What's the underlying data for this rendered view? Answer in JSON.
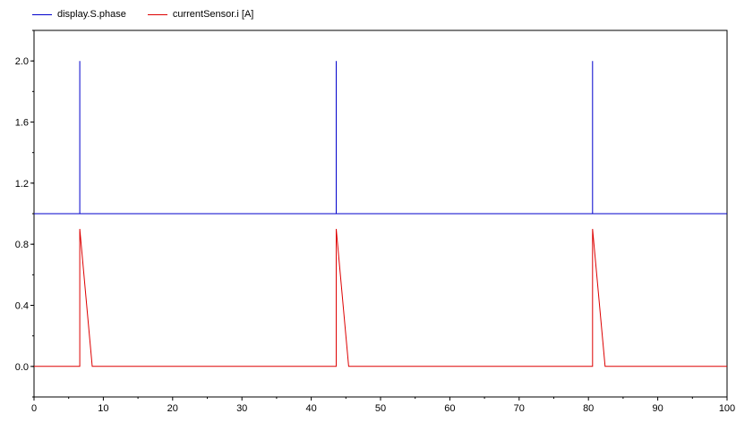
{
  "chart_data": {
    "type": "line",
    "title": "",
    "xlabel": "",
    "ylabel": "",
    "xlim": [
      0,
      100
    ],
    "ylim": [
      -0.2,
      2.2
    ],
    "x_ticks": [
      0,
      10,
      20,
      30,
      40,
      50,
      60,
      70,
      80,
      90,
      100
    ],
    "x_tick_labels": [
      "0",
      "10",
      "20",
      "30",
      "40",
      "50",
      "60",
      "70",
      "80",
      "90",
      "100"
    ],
    "y_ticks": [
      0.0,
      0.4,
      0.8,
      1.2,
      1.6,
      2.0
    ],
    "y_tick_labels": [
      "0.0",
      "0.4",
      "0.8",
      "1.2",
      "1.6",
      "2.0"
    ],
    "grid": false,
    "legend_position": "top-left",
    "series": [
      {
        "name": "display.S.phase",
        "color": "#0000cc",
        "x": [
          0,
          6.6,
          6.6,
          6.6,
          43.6,
          43.6,
          43.6,
          80.6,
          80.6,
          80.6,
          100
        ],
        "y": [
          1.0,
          1.0,
          2.0,
          1.0,
          1.0,
          2.0,
          1.0,
          1.0,
          2.0,
          1.0,
          1.0
        ]
      },
      {
        "name": "currentSensor.i [A]",
        "color": "#dd0000",
        "x": [
          0,
          6.6,
          6.6,
          8.4,
          43.6,
          43.6,
          45.4,
          80.6,
          80.6,
          82.4,
          100
        ],
        "y": [
          0.0,
          0.0,
          0.9,
          0.0,
          0.0,
          0.9,
          0.0,
          0.0,
          0.9,
          0.0,
          0.0
        ]
      }
    ]
  }
}
